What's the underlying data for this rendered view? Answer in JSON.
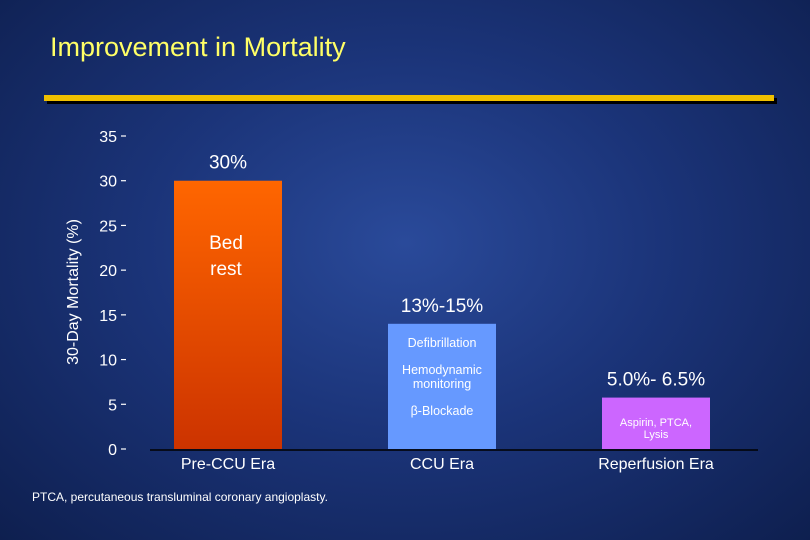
{
  "title": "Improvement in Mortality",
  "footnote": "PTCA, percutaneous transluminal coronary angioplasty.",
  "colors": {
    "bar_pre_top": "#ff6600",
    "bar_pre_bottom": "#cc3300",
    "bar_ccu": "#6699ff",
    "bar_reperfusion": "#cc66ff",
    "title": "#ffff66",
    "rule": "#f0c000"
  },
  "chart_data": {
    "type": "bar",
    "ylabel": "30-Day Mortality (%)",
    "ylim": [
      0,
      35
    ],
    "yticks": [
      "0",
      "5",
      "10",
      "15",
      "20",
      "25",
      "30",
      "35"
    ],
    "categories": [
      "Pre-CCU Era",
      "CCU Era",
      "Reperfusion Era"
    ],
    "values": [
      30,
      14,
      5.75
    ],
    "value_labels": [
      "30%",
      "13%-15%",
      "5.0%- 6.5%"
    ],
    "bar_annotations": [
      [
        "Bed",
        "rest"
      ],
      [
        "Defibrillation",
        "Hemodynamic monitoring",
        "β-Blockade"
      ],
      [
        "Aspirin, PTCA, Lysis"
      ]
    ],
    "grid": false,
    "legend": "none"
  }
}
